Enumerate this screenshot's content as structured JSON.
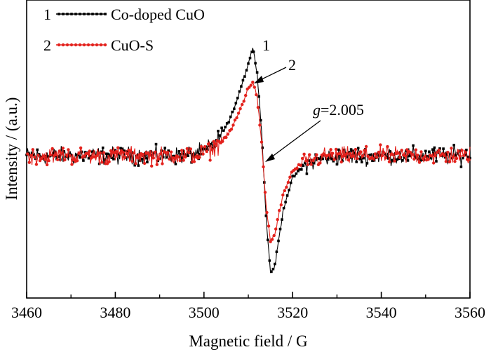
{
  "chart_data": {
    "type": "line",
    "xlabel": "Magnetic field / G",
    "ylabel": "Intensity / (a.u.)",
    "xlim": [
      3460,
      3560
    ],
    "xticks": [
      "3460",
      "3480",
      "3500",
      "3520",
      "3540",
      "3560"
    ],
    "yticks": "none",
    "grid": false,
    "legend_position": "top-left",
    "series": [
      {
        "name": "Co-doped CuO",
        "legend_number": "1",
        "color": "#000000",
        "marker": "square",
        "x": [
          3460,
          3480,
          3495,
          3500,
          3503,
          3506,
          3508,
          3510,
          3511,
          3512,
          3513,
          3514,
          3515,
          3516,
          3517,
          3518,
          3520,
          3523,
          3527,
          3532,
          3540,
          3560
        ],
        "y": [
          0,
          0,
          0,
          0.03,
          0.12,
          0.3,
          0.52,
          0.75,
          0.88,
          0.68,
          0.2,
          -0.5,
          -0.95,
          -0.9,
          -0.65,
          -0.42,
          -0.18,
          -0.07,
          -0.02,
          0,
          0,
          0
        ]
      },
      {
        "name": "CuO-S",
        "legend_number": "2",
        "color": "#e3211c",
        "marker": "circle",
        "x": [
          3460,
          3480,
          3495,
          3500,
          3503,
          3506,
          3508,
          3510,
          3511,
          3512,
          3513,
          3514,
          3515,
          3516,
          3517,
          3518,
          3520,
          3523,
          3527,
          3532,
          3540,
          3560
        ],
        "y": [
          0,
          0,
          0,
          0.02,
          0.08,
          0.2,
          0.36,
          0.55,
          0.6,
          0.48,
          0.1,
          -0.4,
          -0.7,
          -0.64,
          -0.46,
          -0.3,
          -0.12,
          -0.05,
          -0.01,
          0,
          0,
          0
        ]
      }
    ],
    "annotations": [
      {
        "label_num": "1",
        "target_x": 3511,
        "series": 0
      },
      {
        "label_num": "2",
        "target_x": 3511,
        "series": 1
      },
      {
        "label_g": "g",
        "label_val": "=2.005",
        "target_x": 3512.5
      }
    ]
  }
}
